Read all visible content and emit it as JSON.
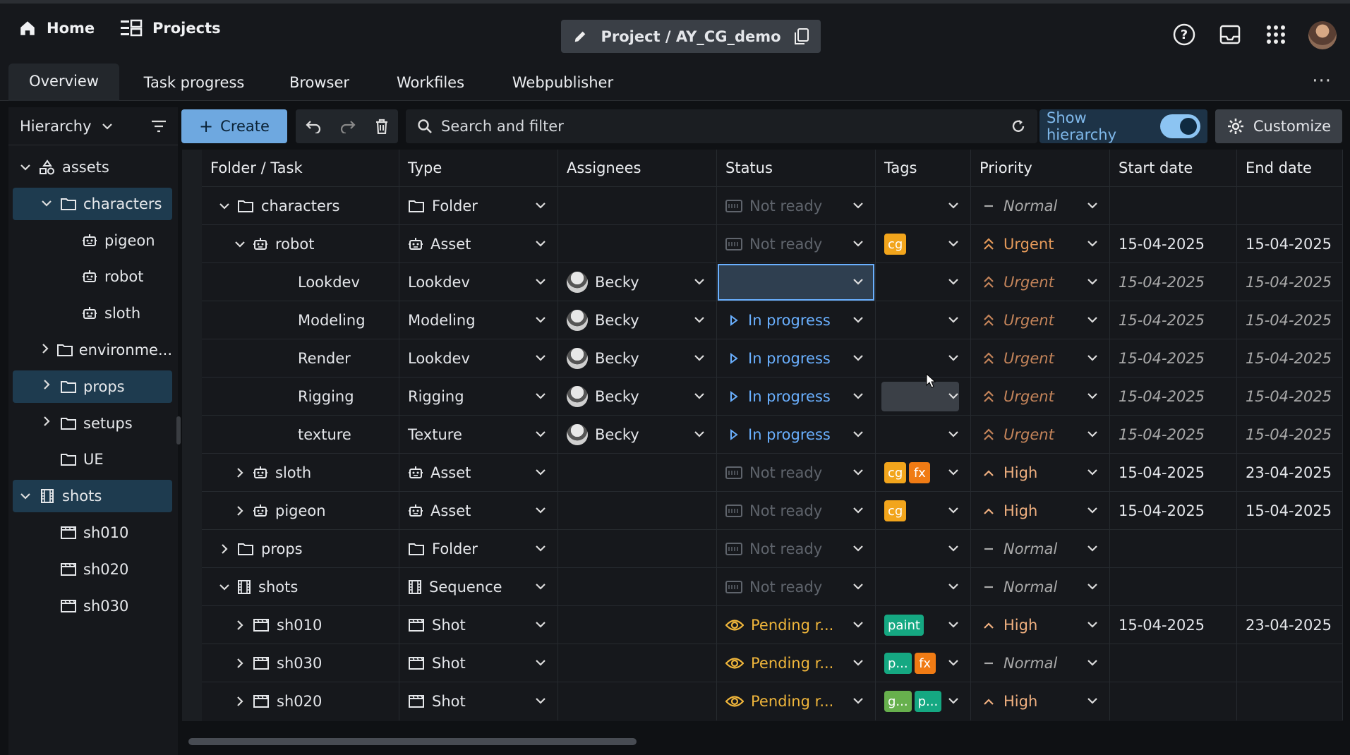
{
  "header": {
    "home_label": "Home",
    "projects_label": "Projects",
    "project_title": "Project / AY_CG_demo",
    "icons": [
      "help-icon",
      "inbox-icon",
      "apps-grid-icon",
      "user-avatar"
    ]
  },
  "tabs": [
    "Overview",
    "Task progress",
    "Browser",
    "Workfiles",
    "Webpublisher"
  ],
  "sidebar": {
    "selector_label": "Hierarchy",
    "items": [
      {
        "label": "assets",
        "icon": "asset-tree-icon",
        "depth": 0,
        "expanded": true,
        "selected": false
      },
      {
        "label": "characters",
        "icon": "folder-icon",
        "depth": 1,
        "expanded": true,
        "selected": true
      },
      {
        "label": "pigeon",
        "icon": "robot-icon",
        "depth": 2,
        "expanded": null,
        "selected": false
      },
      {
        "label": "robot",
        "icon": "robot-icon",
        "depth": 2,
        "expanded": null,
        "selected": false
      },
      {
        "label": "sloth",
        "icon": "robot-icon",
        "depth": 2,
        "expanded": null,
        "selected": false
      },
      {
        "label": "environme...",
        "icon": "folder-icon",
        "depth": 1,
        "expanded": false,
        "selected": false
      },
      {
        "label": "props",
        "icon": "folder-icon",
        "depth": 1,
        "expanded": false,
        "selected": true
      },
      {
        "label": "setups",
        "icon": "folder-icon",
        "depth": 1,
        "expanded": false,
        "selected": false
      },
      {
        "label": "UE",
        "icon": "folder-icon",
        "depth": 1,
        "expanded": null,
        "selected": false
      },
      {
        "label": "shots",
        "icon": "film-icon",
        "depth": 0,
        "expanded": true,
        "selected": true
      },
      {
        "label": "sh010",
        "icon": "clapper-icon",
        "depth": 1,
        "expanded": null,
        "selected": false
      },
      {
        "label": "sh020",
        "icon": "clapper-icon",
        "depth": 1,
        "expanded": null,
        "selected": false
      },
      {
        "label": "sh030",
        "icon": "clapper-icon",
        "depth": 1,
        "expanded": null,
        "selected": false
      }
    ]
  },
  "toolbar": {
    "create_label": "Create",
    "search_placeholder": "Search and filter",
    "show_hierarchy_label": "Show hierarchy",
    "show_hierarchy_on": true,
    "customize_label": "Customize"
  },
  "table": {
    "columns": [
      "Folder / Task",
      "Type",
      "Assignees",
      "Status",
      "Tags",
      "Priority",
      "Start date",
      "End date"
    ],
    "rows": [
      {
        "name": "characters",
        "depth": 0,
        "expander": "down",
        "icon": "folder-icon",
        "type": "Folder",
        "type_icon": "folder-icon",
        "assignee": "",
        "status": "Not ready",
        "status_kind": "notready",
        "tags": [],
        "priority": "Normal",
        "priority_kind": "normal",
        "start": "",
        "end": ""
      },
      {
        "name": "robot",
        "depth": 1,
        "expander": "down",
        "icon": "robot-icon",
        "type": "Asset",
        "type_icon": "robot-icon",
        "assignee": "",
        "status": "Not ready",
        "status_kind": "notready",
        "tags": [
          "cg"
        ],
        "priority": "Urgent",
        "priority_kind": "urgent",
        "start": "15-04-2025",
        "end": "15-04-2025"
      },
      {
        "name": "Lookdev",
        "depth": 2,
        "expander": "",
        "icon": "",
        "type": "Lookdev",
        "type_icon": "",
        "assignee": "Becky",
        "status": "",
        "status_kind": "selected",
        "tags": [],
        "priority": "Urgent",
        "priority_kind": "urgent-inherit",
        "start": "15-04-2025",
        "end": "15-04-2025",
        "inherit": true
      },
      {
        "name": "Modeling",
        "depth": 2,
        "expander": "",
        "icon": "",
        "type": "Modeling",
        "type_icon": "",
        "assignee": "Becky",
        "status": "In progress",
        "status_kind": "progress",
        "tags": [],
        "priority": "Urgent",
        "priority_kind": "urgent-inherit",
        "start": "15-04-2025",
        "end": "15-04-2025",
        "inherit": true
      },
      {
        "name": "Render",
        "depth": 2,
        "expander": "",
        "icon": "",
        "type": "Lookdev",
        "type_icon": "",
        "assignee": "Becky",
        "status": "In progress",
        "status_kind": "progress",
        "tags": [],
        "priority": "Urgent",
        "priority_kind": "urgent-inherit",
        "start": "15-04-2025",
        "end": "15-04-2025",
        "inherit": true
      },
      {
        "name": "Rigging",
        "depth": 2,
        "expander": "",
        "icon": "",
        "type": "Rigging",
        "type_icon": "",
        "assignee": "Becky",
        "status": "In progress",
        "status_kind": "progress",
        "tags": [],
        "tags_hover": true,
        "priority": "Urgent",
        "priority_kind": "urgent-inherit",
        "start": "15-04-2025",
        "end": "15-04-2025",
        "inherit": true
      },
      {
        "name": "texture",
        "depth": 2,
        "expander": "",
        "icon": "",
        "type": "Texture",
        "type_icon": "",
        "assignee": "Becky",
        "status": "In progress",
        "status_kind": "progress",
        "tags": [],
        "priority": "Urgent",
        "priority_kind": "urgent-inherit",
        "start": "15-04-2025",
        "end": "15-04-2025",
        "inherit": true
      },
      {
        "name": "sloth",
        "depth": 1,
        "expander": "right",
        "icon": "robot-icon",
        "type": "Asset",
        "type_icon": "robot-icon",
        "assignee": "",
        "status": "Not ready",
        "status_kind": "notready",
        "tags": [
          "cg",
          "fx"
        ],
        "priority": "High",
        "priority_kind": "high",
        "start": "15-04-2025",
        "end": "23-04-2025"
      },
      {
        "name": "pigeon",
        "depth": 1,
        "expander": "right",
        "icon": "robot-icon",
        "type": "Asset",
        "type_icon": "robot-icon",
        "assignee": "",
        "status": "Not ready",
        "status_kind": "notready",
        "tags": [
          "cg"
        ],
        "priority": "High",
        "priority_kind": "high",
        "start": "15-04-2025",
        "end": "15-04-2025"
      },
      {
        "name": "props",
        "depth": 0,
        "expander": "right",
        "icon": "folder-icon",
        "type": "Folder",
        "type_icon": "folder-icon",
        "assignee": "",
        "status": "Not ready",
        "status_kind": "notready",
        "tags": [],
        "priority": "Normal",
        "priority_kind": "normal",
        "start": "",
        "end": ""
      },
      {
        "name": "shots",
        "depth": 0,
        "expander": "down",
        "icon": "film-icon",
        "type": "Sequence",
        "type_icon": "film-icon",
        "assignee": "",
        "status": "Not ready",
        "status_kind": "notready",
        "tags": [],
        "priority": "Normal",
        "priority_kind": "normal",
        "start": "",
        "end": ""
      },
      {
        "name": "sh010",
        "depth": 1,
        "expander": "right",
        "icon": "clapper-icon",
        "type": "Shot",
        "type_icon": "clapper-icon",
        "assignee": "",
        "status": "Pending r...",
        "status_kind": "pending",
        "tags": [
          "paint"
        ],
        "priority": "High",
        "priority_kind": "high",
        "start": "15-04-2025",
        "end": "23-04-2025"
      },
      {
        "name": "sh030",
        "depth": 1,
        "expander": "right",
        "icon": "clapper-icon",
        "type": "Shot",
        "type_icon": "clapper-icon",
        "assignee": "",
        "status": "Pending r...",
        "status_kind": "pending",
        "tags": [
          "p...",
          "fx"
        ],
        "priority": "Normal",
        "priority_kind": "normal-inherit",
        "start": "",
        "end": ""
      },
      {
        "name": "sh020",
        "depth": 1,
        "expander": "right",
        "icon": "clapper-icon",
        "type": "Shot",
        "type_icon": "clapper-icon",
        "assignee": "",
        "status": "Pending r...",
        "status_kind": "pending",
        "tags": [
          "g...",
          "p..."
        ],
        "priority": "High",
        "priority_kind": "high",
        "start": "",
        "end": ""
      }
    ]
  },
  "colors": {
    "accent": "#6ea8e0",
    "in_progress": "#6ab0ff",
    "pending": "#f0b63b",
    "urgent": "#e59a5a",
    "tag_cg": "#f2a51c",
    "tag_fx": "#f07b14",
    "tag_paint": "#15a882"
  }
}
